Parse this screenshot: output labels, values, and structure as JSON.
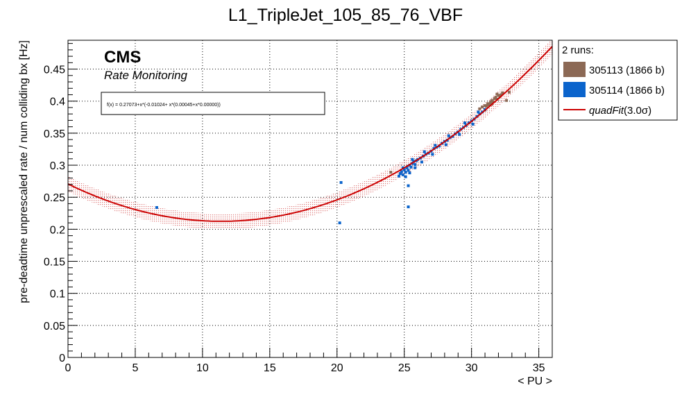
{
  "chart_data": {
    "type": "scatter",
    "title": "L1_TripleJet_105_85_76_VBF",
    "xlabel": "< PU >",
    "ylabel": "pre-deadtime unprescaled rate / num colliding bx [Hz]",
    "xlim": [
      0,
      36
    ],
    "ylim": [
      0,
      0.495
    ],
    "x_ticks": [
      0,
      5,
      10,
      15,
      20,
      25,
      30,
      35
    ],
    "y_ticks": [
      0,
      0.05,
      0.1,
      0.15,
      0.2,
      0.25,
      0.3,
      0.35,
      0.4,
      0.45
    ],
    "grid": true,
    "cms_label": "CMS",
    "cms_sublabel": "Rate Monitoring",
    "fit_formula": "f(x) = 0.27073+x*(-0.01024+ x*(0.00045+x*0.00000))",
    "fit": {
      "coefficients": [
        0.27073,
        -0.01024,
        0.00045,
        0.0
      ],
      "band_sigma": 3.0,
      "band_halfwidth": 0.012,
      "color": "#cc0000"
    },
    "legend": {
      "header": "2 runs:",
      "position": "outside-right",
      "entries": [
        {
          "label": "305113 (1866 b)",
          "color": "#8c6955",
          "kind": "box"
        },
        {
          "label": "305114 (1866 b)",
          "color": "#0b64cc",
          "kind": "box"
        },
        {
          "label_main": "quadFit",
          "label_sigma": "(3.0σ)",
          "color": "#cc0000",
          "kind": "line"
        }
      ]
    },
    "series": [
      {
        "name": "305113 (1866 b)",
        "color": "#8c6955",
        "points": [
          [
            30.6,
            0.388
          ],
          [
            30.8,
            0.391
          ],
          [
            31.0,
            0.393
          ],
          [
            31.1,
            0.392
          ],
          [
            31.2,
            0.396
          ],
          [
            31.3,
            0.394
          ],
          [
            31.4,
            0.398
          ],
          [
            31.5,
            0.401
          ],
          [
            31.6,
            0.399
          ],
          [
            31.7,
            0.404
          ],
          [
            31.8,
            0.406
          ],
          [
            31.9,
            0.403
          ],
          [
            32.0,
            0.409
          ],
          [
            32.1,
            0.407
          ],
          [
            32.2,
            0.41
          ],
          [
            31.0,
            0.386
          ],
          [
            31.5,
            0.395
          ],
          [
            31.9,
            0.411
          ],
          [
            32.3,
            0.413
          ],
          [
            32.6,
            0.401
          ],
          [
            32.8,
            0.414
          ],
          [
            24.0,
            0.289
          ]
        ]
      },
      {
        "name": "305114 (1866 b)",
        "color": "#0b64cc",
        "points": [
          [
            6.6,
            0.234
          ],
          [
            20.2,
            0.21
          ],
          [
            20.3,
            0.273
          ],
          [
            25.3,
            0.235
          ],
          [
            25.3,
            0.268
          ],
          [
            24.6,
            0.283
          ],
          [
            24.7,
            0.287
          ],
          [
            24.8,
            0.29
          ],
          [
            24.9,
            0.285
          ],
          [
            25.0,
            0.293
          ],
          [
            25.1,
            0.289
          ],
          [
            25.2,
            0.296
          ],
          [
            25.3,
            0.292
          ],
          [
            25.4,
            0.3
          ],
          [
            25.5,
            0.297
          ],
          [
            25.6,
            0.303
          ],
          [
            25.7,
            0.306
          ],
          [
            25.8,
            0.301
          ],
          [
            25.9,
            0.307
          ],
          [
            26.0,
            0.309
          ],
          [
            26.2,
            0.311
          ],
          [
            26.4,
            0.314
          ],
          [
            26.6,
            0.317
          ],
          [
            26.8,
            0.319
          ],
          [
            27.0,
            0.322
          ],
          [
            27.2,
            0.326
          ],
          [
            27.4,
            0.328
          ],
          [
            27.6,
            0.33
          ],
          [
            27.8,
            0.334
          ],
          [
            28.0,
            0.337
          ],
          [
            28.2,
            0.339
          ],
          [
            28.4,
            0.343
          ],
          [
            28.6,
            0.345
          ],
          [
            28.8,
            0.349
          ],
          [
            29.0,
            0.352
          ],
          [
            29.2,
            0.356
          ],
          [
            29.4,
            0.359
          ],
          [
            29.6,
            0.362
          ],
          [
            29.8,
            0.366
          ],
          [
            30.0,
            0.369
          ],
          [
            30.2,
            0.372
          ],
          [
            30.4,
            0.376
          ],
          [
            30.6,
            0.38
          ],
          [
            30.8,
            0.383
          ],
          [
            31.0,
            0.387
          ],
          [
            25.1,
            0.282
          ],
          [
            25.4,
            0.288
          ],
          [
            25.8,
            0.296
          ],
          [
            26.3,
            0.305
          ],
          [
            27.1,
            0.317
          ],
          [
            28.1,
            0.332
          ],
          [
            29.1,
            0.348
          ],
          [
            30.1,
            0.364
          ],
          [
            29.5,
            0.366
          ],
          [
            28.3,
            0.346
          ],
          [
            27.3,
            0.331
          ],
          [
            26.5,
            0.321
          ],
          [
            25.6,
            0.309
          ],
          [
            24.9,
            0.296
          ],
          [
            30.5,
            0.383
          ]
        ]
      }
    ]
  }
}
